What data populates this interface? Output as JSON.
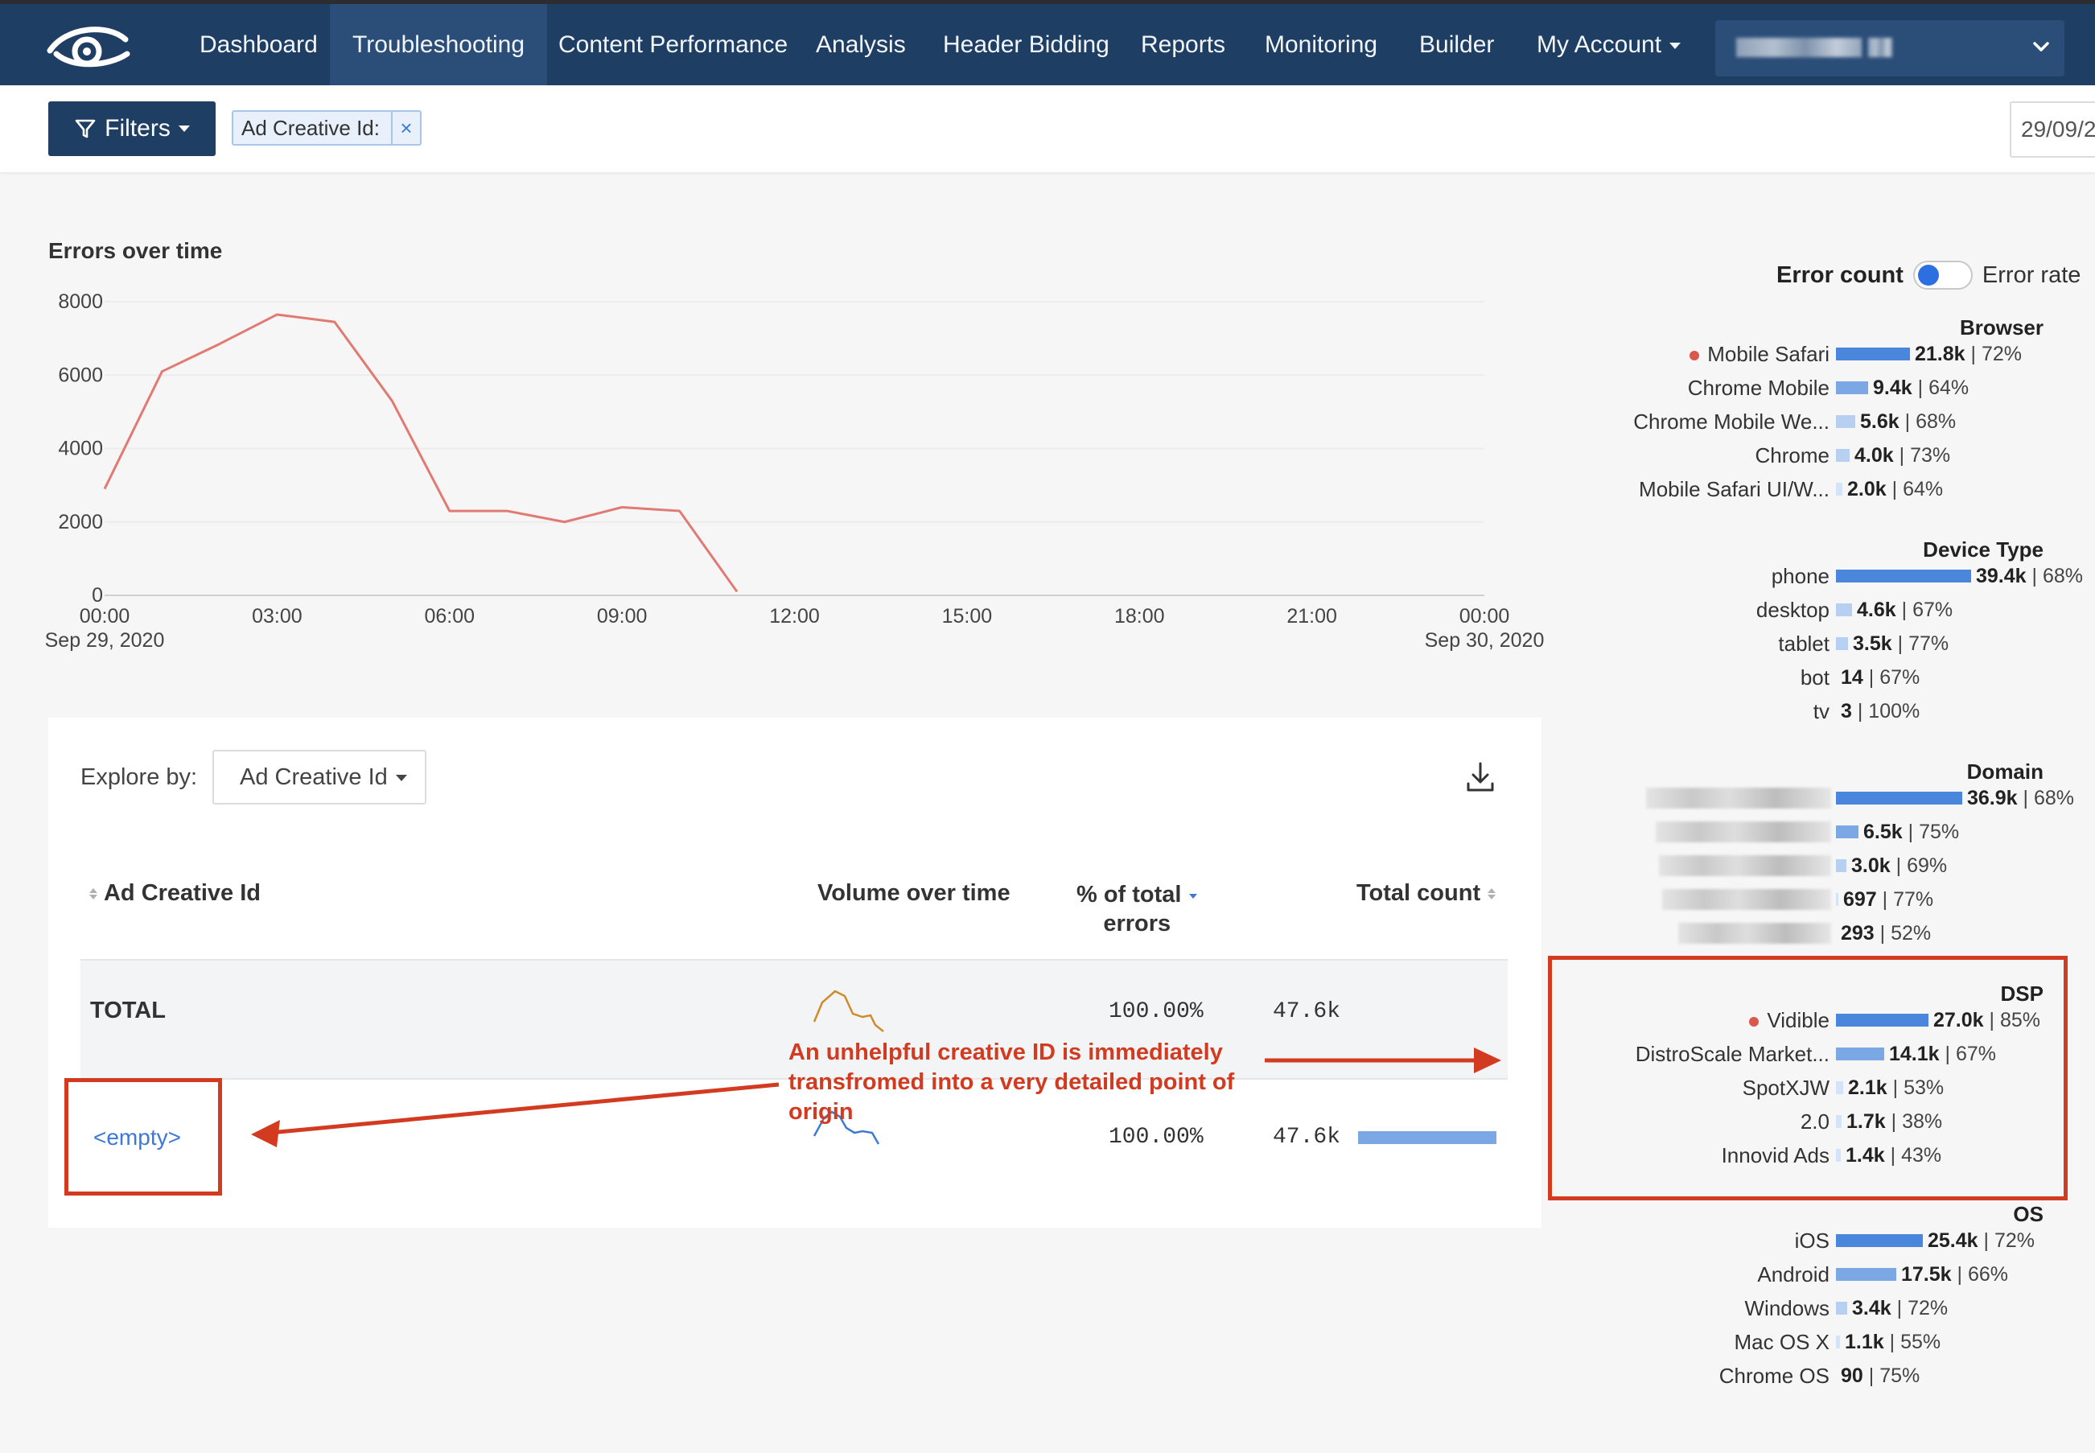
{
  "nav": {
    "items": [
      {
        "label": "Dashboard"
      },
      {
        "label": "Troubleshooting",
        "active": true
      },
      {
        "label": "Content Performance"
      },
      {
        "label": "Analysis"
      },
      {
        "label": "Header Bidding"
      },
      {
        "label": "Reports"
      },
      {
        "label": "Monitoring"
      },
      {
        "label": "Builder"
      },
      {
        "label": "My Account"
      }
    ],
    "account_select": ""
  },
  "filterbar": {
    "filters_label": "Filters",
    "chip_label": "Ad Creative Id:",
    "chip_close": "×",
    "date_value": "29/09/2"
  },
  "chart": {
    "title": "Errors over time"
  },
  "chart_data": {
    "type": "line",
    "title": "Errors over time",
    "xlabel": "",
    "ylabel": "",
    "ylim": [
      0,
      8000
    ],
    "y_ticks": [
      "8000",
      "6000",
      "4000",
      "2000",
      "0"
    ],
    "x_ticks": [
      {
        "label": "00:00",
        "sub": "Sep 29, 2020"
      },
      {
        "label": "03:00",
        "sub": ""
      },
      {
        "label": "06:00",
        "sub": ""
      },
      {
        "label": "09:00",
        "sub": ""
      },
      {
        "label": "12:00",
        "sub": ""
      },
      {
        "label": "15:00",
        "sub": ""
      },
      {
        "label": "18:00",
        "sub": ""
      },
      {
        "label": "21:00",
        "sub": ""
      },
      {
        "label": "00:00",
        "sub": "Sep 30, 2020"
      }
    ],
    "x_hours": [
      0,
      1,
      2,
      3,
      4,
      5,
      6,
      7,
      8,
      9,
      10,
      11
    ],
    "values": [
      2900,
      6100,
      6850,
      7650,
      7450,
      5300,
      2300,
      2300,
      2000,
      2400,
      2300,
      100
    ],
    "series_color": "#e07a72",
    "grid": true
  },
  "explore": {
    "label": "Explore by:",
    "selected": "Ad Creative Id",
    "headers": {
      "ad_creative_id": "Ad Creative Id",
      "volume": "Volume over time",
      "pct_line1": "% of total",
      "pct_line2": "errors",
      "total_count": "Total count"
    },
    "total_row": {
      "label": "TOTAL",
      "pct": "100.00%",
      "count": "47.6k"
    },
    "rows": [
      {
        "id": "<empty>",
        "pct": "100.00%",
        "count": "47.6k",
        "share": 1.0
      }
    ],
    "colors": {
      "total_spark": "#d08a2a",
      "row_spark": "#3c7ad6"
    }
  },
  "annotation": {
    "text": "An unhelpful creative ID is immediately transfromed into a very detailed point of origin",
    "color": "#d23b1f"
  },
  "breakdown": {
    "toggle": {
      "on_label": "Error count",
      "off_label": "Error rate"
    },
    "groups": [
      {
        "title": "Browser",
        "items": [
          {
            "name": "Mobile Safari",
            "dot": true,
            "count": "21.8k",
            "pct": "72%",
            "share": 0.5505
          },
          {
            "name": "Chrome Mobile",
            "count": "9.4k",
            "pct": "64%",
            "share": 0.2374
          },
          {
            "name": "Chrome Mobile We...",
            "count": "5.6k",
            "pct": "68%",
            "share": 0.1414
          },
          {
            "name": "Chrome",
            "count": "4.0k",
            "pct": "73%",
            "share": 0.101
          },
          {
            "name": "Mobile Safari UI/W...",
            "count": "2.0k",
            "pct": "64%",
            "share": 0.0505
          }
        ]
      },
      {
        "title": "Device Type",
        "items": [
          {
            "name": "phone",
            "count": "39.4k",
            "pct": "68%",
            "share": 1.0
          },
          {
            "name": "desktop",
            "count": "4.6k",
            "pct": "67%",
            "share": 0.1168
          },
          {
            "name": "tablet",
            "count": "3.5k",
            "pct": "77%",
            "share": 0.0888
          },
          {
            "name": "bot",
            "count": "14",
            "pct": "67%",
            "share": 0.0004
          },
          {
            "name": "tv",
            "count": "3",
            "pct": "100%",
            "share": 0.0001
          }
        ]
      },
      {
        "title": "Domain",
        "items": [
          {
            "name": "",
            "redacted": true,
            "count": "36.9k",
            "pct": "68%",
            "share": 0.9365
          },
          {
            "name": "",
            "redacted": true,
            "count": "6.5k",
            "pct": "75%",
            "share": 0.165
          },
          {
            "name": "",
            "redacted": true,
            "count": "3.0k",
            "pct": "69%",
            "share": 0.0761
          },
          {
            "name": "",
            "redacted": true,
            "count": "697",
            "pct": "77%",
            "share": 0.0177
          },
          {
            "name": "",
            "redacted": true,
            "count": "293",
            "pct": "52%",
            "share": 0.0074
          }
        ]
      },
      {
        "title": "DSP",
        "items": [
          {
            "name": "Vidible",
            "dot": true,
            "count": "27.0k",
            "pct": "85%",
            "share": 0.6853
          },
          {
            "name": "DistroScale Market...",
            "count": "14.1k",
            "pct": "67%",
            "share": 0.3579
          },
          {
            "name": "SpotXJW",
            "count": "2.1k",
            "pct": "53%",
            "share": 0.0533
          },
          {
            "name": "2.0",
            "count": "1.7k",
            "pct": "38%",
            "share": 0.0431
          },
          {
            "name": "Innovid Ads",
            "count": "1.4k",
            "pct": "43%",
            "share": 0.0355
          }
        ]
      },
      {
        "title": "OS",
        "items": [
          {
            "name": "iOS",
            "count": "25.4k",
            "pct": "72%",
            "share": 0.6447
          },
          {
            "name": "Android",
            "count": "17.5k",
            "pct": "66%",
            "share": 0.4442
          },
          {
            "name": "Windows",
            "count": "3.4k",
            "pct": "72%",
            "share": 0.0863
          },
          {
            "name": "Mac OS X",
            "count": "1.1k",
            "pct": "55%",
            "share": 0.0279
          },
          {
            "name": "Chrome OS",
            "count": "90",
            "pct": "75%",
            "share": 0.0023
          }
        ]
      }
    ],
    "colors": {
      "bar_strong": "#4a86dc",
      "bar_mid": "#7ba7e4",
      "bar_light": "#b7cff1",
      "bar_faint": "#d3e3f8"
    }
  }
}
